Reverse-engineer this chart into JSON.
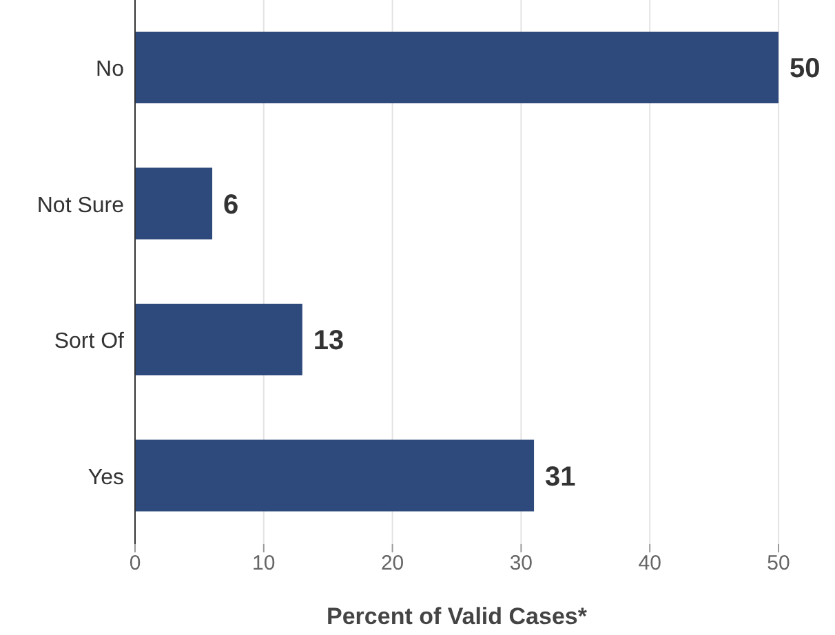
{
  "chart_data": {
    "type": "bar",
    "orientation": "horizontal",
    "categories": [
      "No",
      "Not Sure",
      "Sort Of",
      "Yes"
    ],
    "values": [
      50,
      6,
      13,
      31
    ],
    "color": "#2e4a7c",
    "xlim": [
      0,
      50
    ],
    "xticks": [
      0,
      10,
      20,
      30,
      40,
      50
    ],
    "xlabel": "Percent of Valid Cases*",
    "grid": "x",
    "data_labels": true
  }
}
